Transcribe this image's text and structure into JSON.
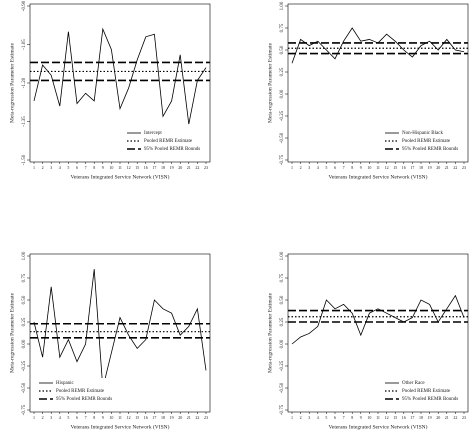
{
  "chart_data": [
    {
      "type": "line",
      "y_label": "Meta-regression Parameter Estimate",
      "x_label": "Veterans Integrated Service Network (VISN)",
      "categories": [
        "1",
        "2",
        "3",
        "4",
        "5",
        "6",
        "7",
        "8",
        "9",
        "10",
        "11",
        "12",
        "15",
        "16",
        "17",
        "18",
        "19",
        "20",
        "21",
        "22",
        "23"
      ],
      "series": [
        {
          "name": "Intercept",
          "color": "#000000",
          "values": [
            -1.27,
            -1.13,
            -1.17,
            -1.29,
            -1.0,
            -1.28,
            -1.24,
            -1.27,
            -0.99,
            -1.07,
            -1.3,
            -1.22,
            -1.11,
            -1.02,
            -1.01,
            -1.33,
            -1.27,
            -1.09,
            -1.36,
            -1.19,
            -1.14
          ]
        }
      ],
      "estimate": {
        "name": "Pooled REMR Estimate",
        "value": -1.155
      },
      "bounds": {
        "name": "95% Pooled REMR Bounds",
        "values": [
          -1.19,
          -1.12
        ]
      },
      "ylim": [
        -1.5,
        -0.9
      ],
      "yticks": [
        {
          "value": -0.9,
          "label": "-0.90"
        },
        -1.05,
        {
          "value": -1.2,
          "label": "-1.20"
        },
        -1.35,
        {
          "value": -1.5,
          "label": "-1.50"
        }
      ],
      "legend": "lower right"
    },
    {
      "type": "line",
      "y_label": "Meta-regression Parameter Estimate",
      "x_label": "Veterans Integrated Service Network (VISN)",
      "categories": [
        "1",
        "2",
        "3",
        "4",
        "5",
        "6",
        "7",
        "8",
        "9",
        "10",
        "11",
        "12",
        "15",
        "16",
        "17",
        "18",
        "19",
        "20",
        "21",
        "22",
        "23"
      ],
      "series": [
        {
          "name": "Non-Hispanic Black",
          "color": "#000000",
          "values": [
            0.35,
            0.62,
            0.55,
            0.6,
            0.5,
            0.4,
            0.6,
            0.75,
            0.6,
            0.62,
            0.58,
            0.68,
            0.6,
            0.5,
            0.42,
            0.55,
            0.6,
            0.5,
            0.62,
            0.5,
            0.48
          ]
        }
      ],
      "estimate": {
        "name": "Pooled REMR Estimate",
        "value": 0.52
      },
      "bounds": {
        "name": "95% Pooled REMR Bounds",
        "values": [
          0.46,
          0.58
        ]
      },
      "ylim": [
        -0.75,
        1.0
      ],
      "yticks": [
        {
          "value": 1,
          "label": "1.00"
        },
        0.75,
        {
          "value": 0.5,
          "label": "0.50"
        },
        0.25,
        {
          "value": 0,
          "label": "0.00"
        },
        -0.25,
        {
          "value": -0.5,
          "label": "-0.50"
        },
        -0.75
      ],
      "legend": "lower right"
    },
    {
      "type": "line",
      "y_label": "Meta-regression Parameter Estimate",
      "x_label": "Veterans Integrated Service Network (VISN)",
      "categories": [
        "1",
        "2",
        "3",
        "4",
        "5",
        "6",
        "7",
        "8",
        "9",
        "10",
        "11",
        "12",
        "15",
        "16",
        "17",
        "18",
        "19",
        "20",
        "21",
        "22",
        "23"
      ],
      "series": [
        {
          "name": "Hispanic",
          "color": "#000000",
          "values": [
            0.25,
            -0.15,
            0.65,
            -0.15,
            0.05,
            -0.2,
            0.0,
            0.85,
            -0.5,
            -0.1,
            0.3,
            0.1,
            -0.05,
            0.05,
            0.5,
            0.4,
            0.35,
            0.1,
            0.2,
            0.4,
            -0.3
          ]
        }
      ],
      "estimate": {
        "name": "Pooled REMR Estimate",
        "value": 0.14
      },
      "bounds": {
        "name": "95% Pooled REMR Bounds",
        "values": [
          0.07,
          0.23
        ]
      },
      "ylim": [
        -0.75,
        1.0
      ],
      "yticks": [
        {
          "value": 1,
          "label": "1.00"
        },
        0.75,
        {
          "value": 0.5,
          "label": "0.50"
        },
        0.25,
        {
          "value": 0,
          "label": "0.00"
        },
        -0.25,
        {
          "value": -0.5,
          "label": "-0.50"
        },
        -0.75
      ],
      "legend": "lower left"
    },
    {
      "type": "line",
      "y_label": "Meta-regression Parameter Estimate",
      "x_label": "Veterans Integrated Service Network (VISN)",
      "categories": [
        "1",
        "2",
        "3",
        "4",
        "5",
        "6",
        "7",
        "8",
        "9",
        "10",
        "11",
        "12",
        "15",
        "16",
        "17",
        "18",
        "19",
        "20",
        "21",
        "22",
        "23"
      ],
      "series": [
        {
          "name": "Other Race",
          "color": "#000000",
          "values": [
            0.0,
            0.08,
            0.12,
            0.2,
            0.5,
            0.4,
            0.45,
            0.35,
            0.1,
            0.35,
            0.4,
            0.35,
            0.3,
            0.25,
            0.3,
            0.5,
            0.45,
            0.25,
            0.4,
            0.55,
            0.3
          ]
        }
      ],
      "estimate": {
        "name": "Pooled REMR Estimate",
        "value": 0.31
      },
      "bounds": {
        "name": "95% Pooled REMR Bounds",
        "values": [
          0.25,
          0.38
        ]
      },
      "ylim": [
        -0.75,
        1.0
      ],
      "yticks": [
        {
          "value": 1,
          "label": "1.00"
        },
        0.75,
        {
          "value": 0.5,
          "label": "0.50"
        },
        0.25,
        {
          "value": 0,
          "label": "0.00"
        },
        -0.25,
        {
          "value": -0.5,
          "label": "-0.50"
        },
        -0.75
      ],
      "legend": "lower right"
    }
  ]
}
